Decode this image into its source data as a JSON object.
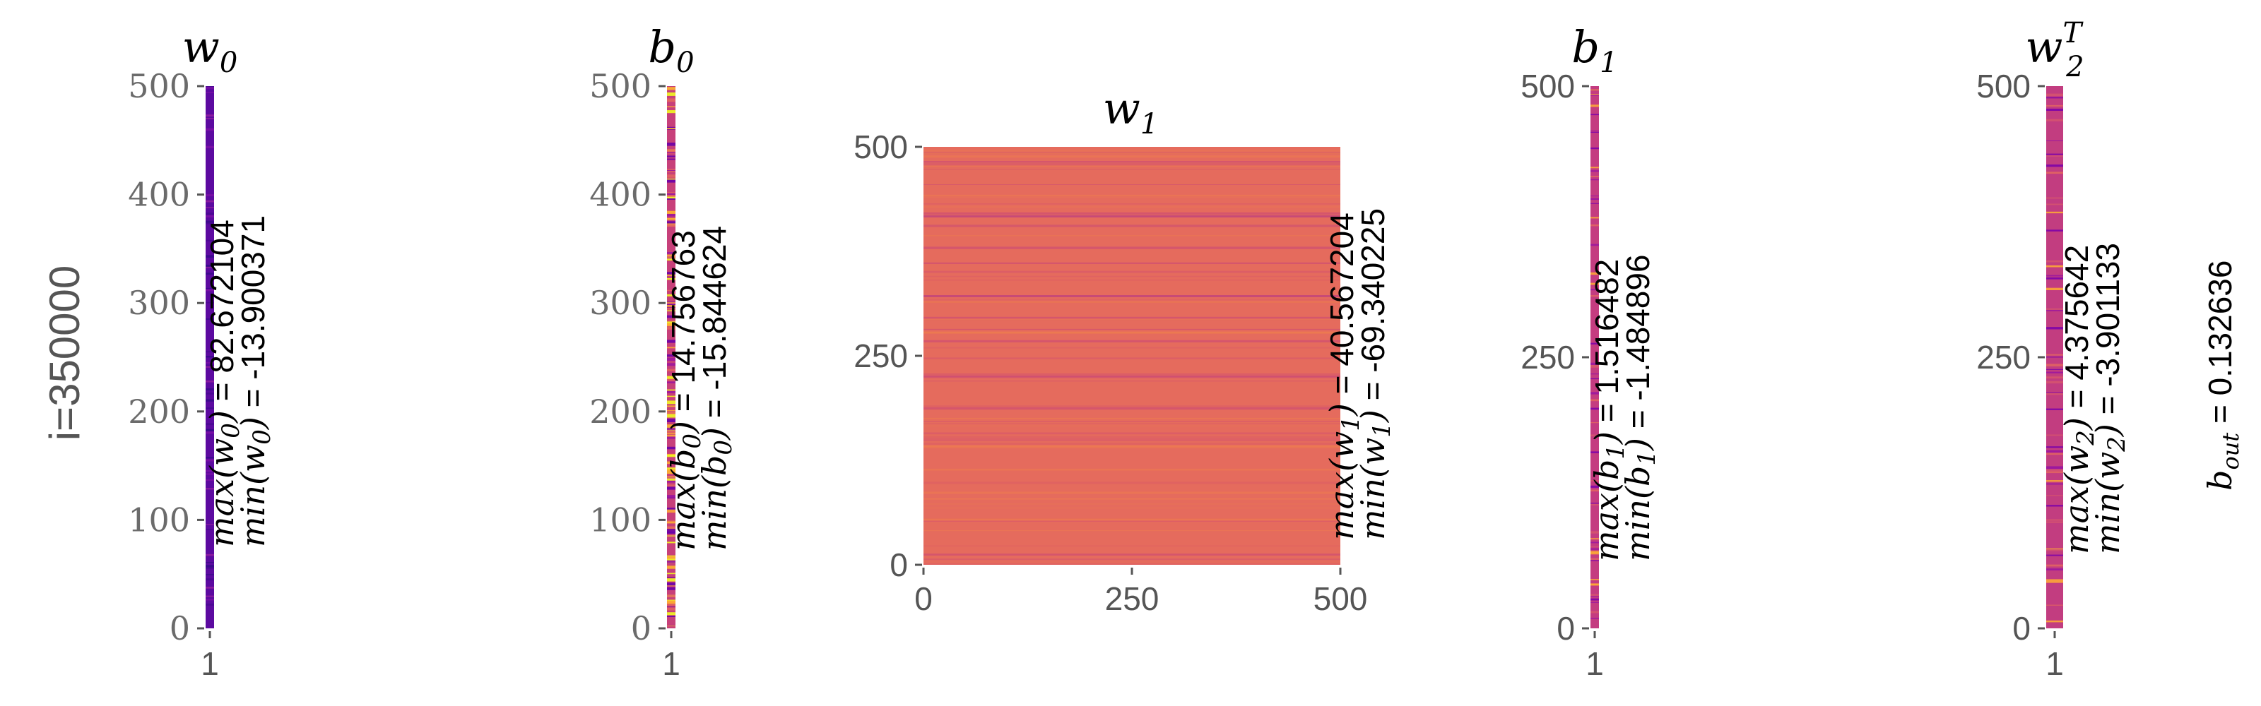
{
  "figure": {
    "row_label": "i=350000",
    "b_out": {
      "name": "b",
      "sub": "out",
      "value": "0.132636"
    }
  },
  "chart_data": [
    {
      "type": "heatmap",
      "id": "w0",
      "title": {
        "base": "w",
        "sub": "0",
        "sup": ""
      },
      "colormap": "plasma",
      "dominant_color": "#5c0aa0",
      "ylim": [
        0,
        500
      ],
      "y_ticks": [
        "0",
        "100",
        "200",
        "300",
        "400",
        "500"
      ],
      "x_ticks": [
        "1"
      ],
      "max": "82.672104",
      "min": "-13.900371",
      "annot_var": "w",
      "annot_sub": "0"
    },
    {
      "type": "heatmap",
      "id": "b0",
      "title": {
        "base": "b",
        "sub": "0",
        "sup": ""
      },
      "colormap": "plasma",
      "dominant_color": "#c7407a",
      "ylim": [
        0,
        500
      ],
      "y_ticks": [
        "0",
        "100",
        "200",
        "300",
        "400",
        "500"
      ],
      "x_ticks": [
        "1"
      ],
      "max": "14.756763",
      "min": "-15.844624",
      "annot_var": "b",
      "annot_sub": "0"
    },
    {
      "type": "heatmap",
      "id": "w1",
      "title": {
        "base": "w",
        "sub": "1",
        "sup": ""
      },
      "colormap": "plasma",
      "dominant_color": "#e56b5d",
      "xlim": [
        0,
        500
      ],
      "ylim": [
        0,
        500
      ],
      "y_ticks": [
        "0",
        "250",
        "500"
      ],
      "x_ticks": [
        "0",
        "250",
        "500"
      ],
      "max": "40.567204",
      "min": "-69.340225",
      "annot_var": "w",
      "annot_sub": "1"
    },
    {
      "type": "heatmap",
      "id": "b1",
      "title": {
        "base": "b",
        "sub": "1",
        "sup": ""
      },
      "colormap": "plasma",
      "dominant_color": "#c43c80",
      "ylim": [
        0,
        500
      ],
      "y_ticks": [
        "0",
        "250",
        "500"
      ],
      "x_ticks": [
        "1"
      ],
      "max": "1.516482",
      "min": "-1.484896",
      "annot_var": "b",
      "annot_sub": "1"
    },
    {
      "type": "heatmap",
      "id": "w2T",
      "title": {
        "base": "w",
        "sub": "2",
        "sup": "T"
      },
      "colormap": "plasma",
      "dominant_color": "#c23d80",
      "ylim": [
        0,
        500
      ],
      "y_ticks": [
        "0",
        "250",
        "500"
      ],
      "x_ticks": [
        "1"
      ],
      "max": "4.375642",
      "min": "-3.901133",
      "annot_var": "w",
      "annot_sub": "2"
    }
  ]
}
